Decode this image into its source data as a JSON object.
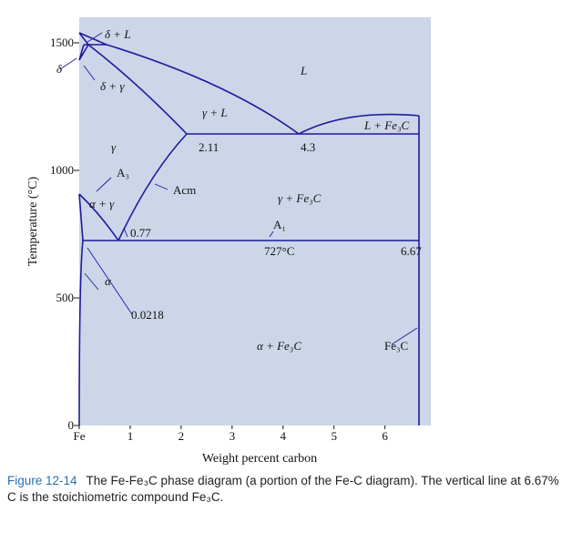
{
  "chart_data": {
    "type": "phase_diagram",
    "xlabel": "Weight percent carbon",
    "ylabel": "Temperature (°C)",
    "xlim": [
      0,
      6.9
    ],
    "ylim": [
      0,
      1600
    ],
    "xticks": [
      {
        "value": 0,
        "label": "Fe"
      },
      1,
      2,
      3,
      4,
      5,
      6
    ],
    "yticks": [
      0,
      500,
      1000,
      1500
    ],
    "annotations": [
      "δ + L",
      "δ",
      "δ + γ",
      "L",
      "γ + L",
      "L + Fe₃C",
      "γ",
      "2.11",
      "4.3",
      "A₃",
      "Acm",
      "α + γ",
      "γ + Fe₃C",
      "0.77",
      "A₁",
      "727°C",
      "6.67",
      "α",
      "0.0218",
      "α + Fe₃C",
      "Fe₃C"
    ],
    "caption": {
      "label": "Figure 12-14",
      "text": "The Fe-Fe₃C phase diagram (a portion of the Fe-C diagram). The vertical line at 6.67% C is the stoichiometric compound Fe₃C."
    }
  }
}
